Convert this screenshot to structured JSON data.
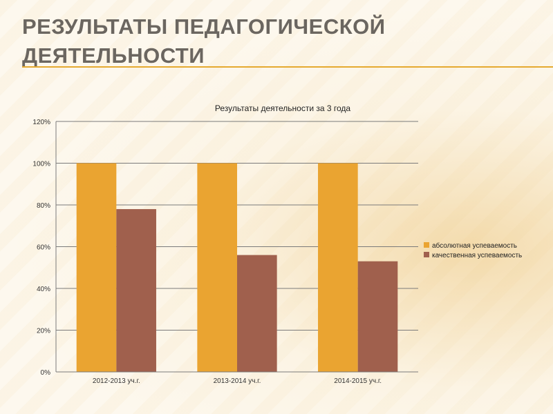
{
  "slide": {
    "title": "РЕЗУЛЬТАТЫ ПЕДАГОГИЧЕСКОЙ ДЕЯТЕЛЬНОСТИ",
    "accent_color": "#e5a92f"
  },
  "chart_data": {
    "type": "bar",
    "title": "Результаты деятельности за 3 года",
    "xlabel": "",
    "ylabel": "",
    "categories": [
      "2012-2013 уч.г.",
      "2013-2014 уч.г.",
      "2014-2015 уч.г."
    ],
    "series": [
      {
        "name": "абсолютная успеваемость",
        "values": [
          100,
          100,
          100
        ],
        "color": "#eaa431"
      },
      {
        "name": "качественная успеваемость",
        "values": [
          78,
          56,
          53
        ],
        "color": "#a0604d"
      }
    ],
    "ylim": [
      0,
      120
    ],
    "yticks": [
      0,
      20,
      40,
      60,
      80,
      100,
      120
    ],
    "ytick_suffix": "%",
    "grid": true,
    "legend_position": "right"
  }
}
